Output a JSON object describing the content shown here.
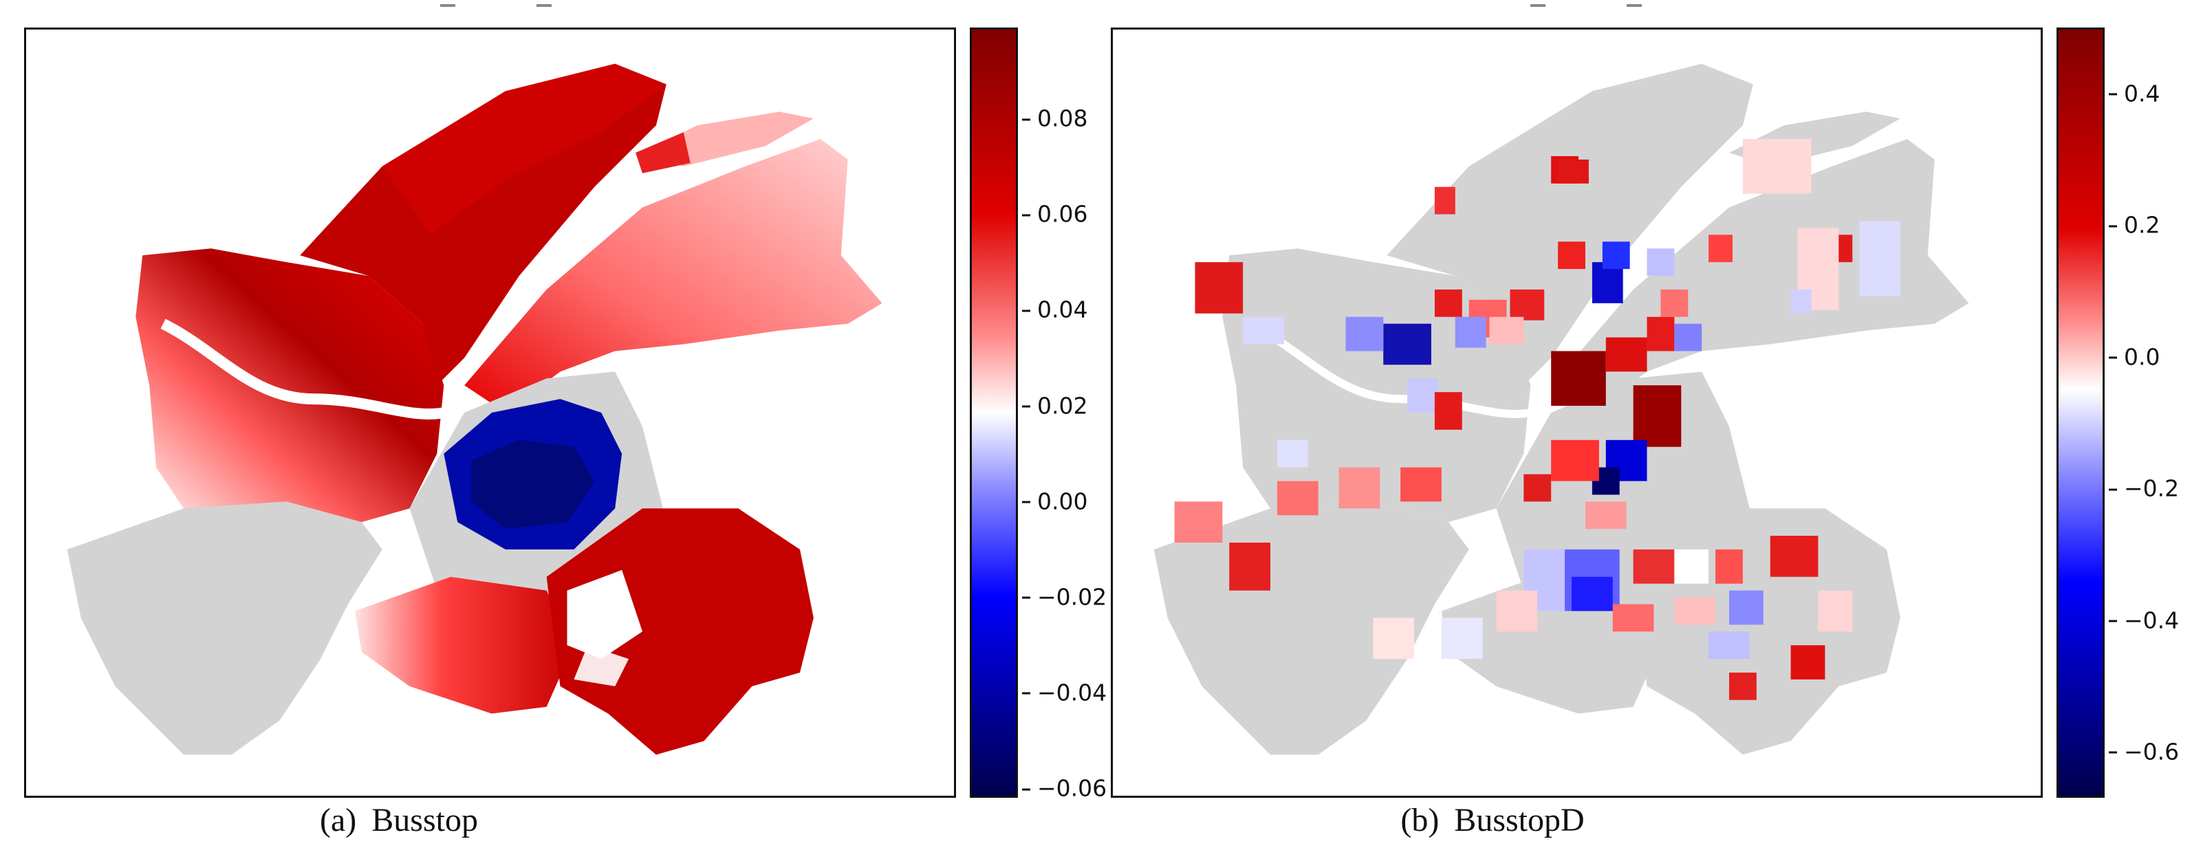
{
  "panels": [
    {
      "caption_tag": "(a)",
      "caption_label": "Busstop",
      "colorbar": {
        "cmap": "seismic",
        "min": -0.062,
        "max": 0.099,
        "ticks": [
          "0.08",
          "0.06",
          "0.04",
          "0.02",
          "0.00",
          "−0.02",
          "−0.04",
          "−0.06"
        ],
        "tick_values": [
          0.08,
          0.06,
          0.04,
          0.02,
          0.0,
          -0.02,
          -0.04,
          -0.06
        ]
      }
    },
    {
      "caption_tag": "(b)",
      "caption_label": "BusstopD",
      "colorbar": {
        "cmap": "seismic",
        "min": -0.67,
        "max": 0.5,
        "ticks": [
          "0.4",
          "0.2",
          "0.0",
          "−0.2",
          "−0.4",
          "−0.6"
        ],
        "tick_values": [
          0.4,
          0.2,
          0.0,
          -0.2,
          -0.4,
          -0.6
        ]
      }
    }
  ],
  "colors": {
    "background_region": "#d3d3d3",
    "cmap_low": "#00004c",
    "cmap_mid": "#ffffff",
    "cmap_high": "#800000"
  }
}
